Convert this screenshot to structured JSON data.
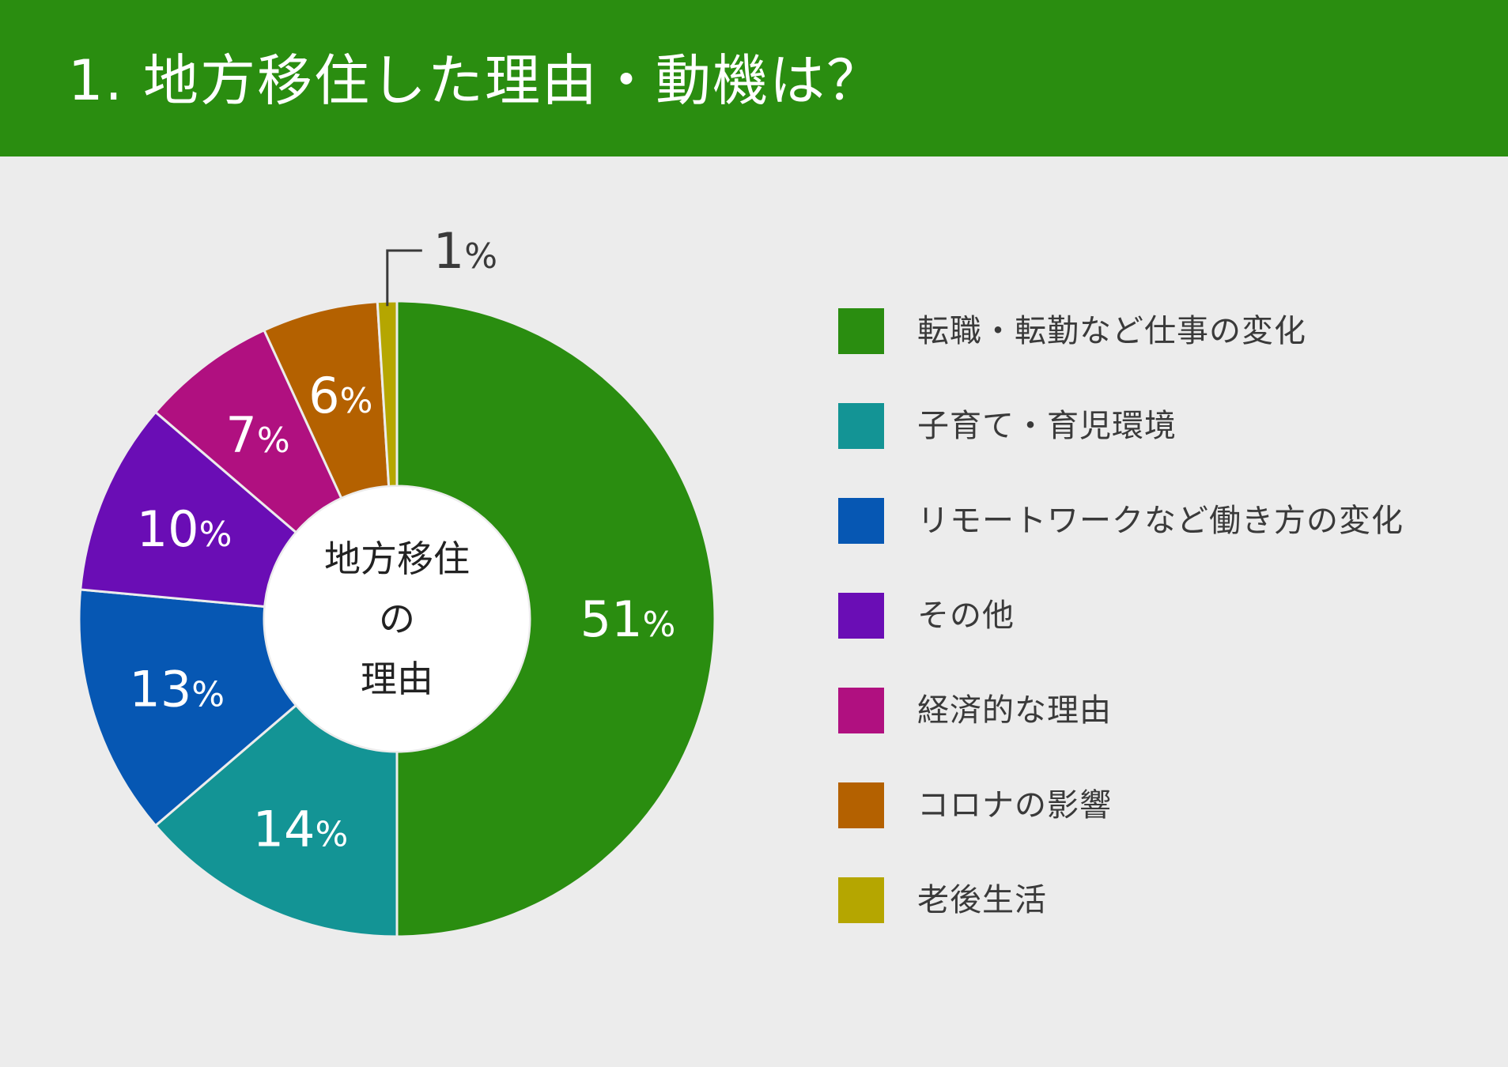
{
  "header": {
    "title": "1. 地方移住した理由・動機は？"
  },
  "chart_data": {
    "type": "pie",
    "donut": true,
    "title": "1. 地方移住した理由・動機は？",
    "center_label": [
      "地方移住",
      "の",
      "理由"
    ],
    "unit": "%",
    "legend_position": "right",
    "categories": [
      "転職・転勤など仕事の変化",
      "子育て・育児環境",
      "リモートワークなど働き方の変化",
      "その他",
      "経済的な理由",
      "コロナの影響",
      "老後生活"
    ],
    "values": [
      51,
      14,
      13,
      10,
      7,
      6,
      1
    ],
    "colors": [
      "#2a8d10",
      "#139495",
      "#0657b3",
      "#6a0db5",
      "#b01080",
      "#b46100",
      "#b5a600"
    ],
    "value_labels": [
      "51",
      "14",
      "13",
      "10",
      "7",
      "6",
      "1"
    ]
  }
}
